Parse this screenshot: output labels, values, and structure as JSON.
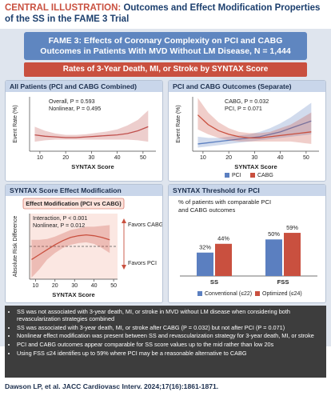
{
  "header": {
    "label": "CENTRAL ILLUSTRATION:",
    "title": "Outcomes and Effect Modification Properties of the SS in the FAME 3 Trial"
  },
  "banner": "FAME 3: Effects of Coronary Complexity on PCI and CABG Outcomes in Patients With MVD Without LM Disease, N = 1,444",
  "section_title": "Rates of 3-Year Death, MI, or Stroke by SYNTAX Score",
  "chart_data": [
    {
      "type": "line",
      "title": "All Patients (PCI and CABG Combined)",
      "annotations": [
        "Overall, P = 0.593",
        "Nonlinear, P = 0.495"
      ],
      "x_label": "SYNTAX Score",
      "y_label": "Event Rate (%)",
      "x": [
        8,
        12,
        16,
        20,
        24,
        28,
        32,
        36,
        40,
        44,
        48,
        52
      ],
      "xlim": [
        6,
        55
      ],
      "xticks": [
        10,
        20,
        30,
        40,
        50
      ],
      "ylim": [
        0,
        40
      ],
      "series": [
        {
          "color": "#c0504d",
          "values": [
            12,
            11,
            10.5,
            10,
            10,
            10.5,
            11,
            11.5,
            12,
            13,
            15,
            18
          ],
          "lower": [
            7,
            8,
            8.5,
            8.5,
            8.5,
            8.5,
            8.5,
            8.5,
            8.5,
            8.5,
            8,
            7
          ],
          "upper": [
            18,
            15,
            13,
            12,
            12,
            12.5,
            13.5,
            14.5,
            16,
            19,
            23,
            30
          ]
        }
      ]
    },
    {
      "type": "line",
      "title": "PCI and CABG Outcomes (Separate)",
      "annotations": [
        "CABG, P = 0.032",
        "PCI, P = 0.071"
      ],
      "x_label": "SYNTAX Score",
      "y_label": "Event Rate (%)",
      "x": [
        8,
        12,
        16,
        20,
        24,
        28,
        32,
        36,
        40,
        44,
        48,
        52
      ],
      "xlim": [
        6,
        55
      ],
      "xticks": [
        10,
        20,
        30,
        40,
        50
      ],
      "ylim": [
        0,
        45
      ],
      "series": [
        {
          "name": "PCI",
          "color": "#5b7fc0",
          "values": [
            6,
            7,
            8,
            9,
            10,
            11,
            12,
            14,
            16,
            19,
            22,
            25
          ],
          "lower": [
            3,
            4,
            5,
            6,
            7,
            8,
            9,
            10,
            11,
            12,
            13,
            14
          ],
          "upper": [
            12,
            11,
            11,
            12,
            13,
            14,
            16,
            19,
            23,
            28,
            34,
            40
          ]
        },
        {
          "name": "CABG",
          "color": "#c9503f",
          "values": [
            30,
            22,
            17,
            14,
            12,
            11,
            11,
            12,
            13,
            14,
            15,
            16
          ],
          "lower": [
            18,
            14,
            11,
            9,
            8,
            8,
            8,
            8,
            8,
            8,
            7,
            6
          ],
          "upper": [
            44,
            32,
            24,
            19,
            16,
            15,
            15,
            16,
            19,
            22,
            27,
            32
          ]
        }
      ]
    },
    {
      "type": "line",
      "title": "SYNTAX Score Effect Modification",
      "subtitle": "Effect Modification (PCI vs CABG)",
      "annotations": [
        "Interaction, P < 0.001",
        "Nonlinear, P = 0.012"
      ],
      "favors_labels": [
        "Favors CABG",
        "Favors PCI"
      ],
      "x_label": "SYNTAX Score",
      "y_label": "Absolute Risk Difference",
      "x": [
        8,
        12,
        16,
        20,
        24,
        28,
        32,
        36,
        40,
        44,
        48
      ],
      "xlim": [
        7,
        52
      ],
      "xticks": [
        10,
        20,
        30,
        40,
        50
      ],
      "ylim": [
        -20,
        20
      ],
      "series": [
        {
          "color": "#c9503f",
          "values": [
            -8,
            -5,
            -2,
            1,
            3.5,
            5.5,
            6.5,
            7,
            6.5,
            5.5,
            4
          ],
          "lower": [
            -19,
            -14,
            -8,
            -4,
            -1,
            1,
            2,
            2.5,
            1.5,
            -1,
            -4
          ],
          "upper": [
            4,
            4,
            4.5,
            6,
            8,
            10,
            11,
            12,
            12,
            12.5,
            13
          ]
        }
      ]
    },
    {
      "type": "bar",
      "title": "SYNTAX Threshold for PCI",
      "subtitle": "% of patients with comparable PCI and CABG outcomes",
      "categories": [
        "SS",
        "FSS"
      ],
      "ylim": [
        0,
        70
      ],
      "series": [
        {
          "name": "Conventional (≤22)",
          "color": "#5b7fc0",
          "values": [
            32,
            50
          ],
          "value_labels": [
            "32%",
            "50%"
          ]
        },
        {
          "name": "Optimized (≤24)",
          "color": "#c9503f",
          "values": [
            44,
            59
          ],
          "value_labels": [
            "44%",
            "59%"
          ]
        }
      ]
    }
  ],
  "key_points": [
    "SS was not associated with 3-year death, MI, or stroke in MVD without LM disease when considering both revascularization strategies combined",
    "SS was associated with 3-year death, MI, or stroke after CABG (P = 0.032) but not after PCI (P = 0.071)",
    "Nonlinear effect modification was present between SS and revascularization strategy for 3-year death, MI, or stroke",
    "PCI and CABG outcomes appear comparable for SS score values up to the mid rather than low 20s",
    "Using FSS ≤24 identifies up to 59% where PCI may be a reasonable alternative to CABG"
  ],
  "citation": "Dawson LP, et al. JACC Cardiovasc Interv. 2024;17(16):1861-1871."
}
